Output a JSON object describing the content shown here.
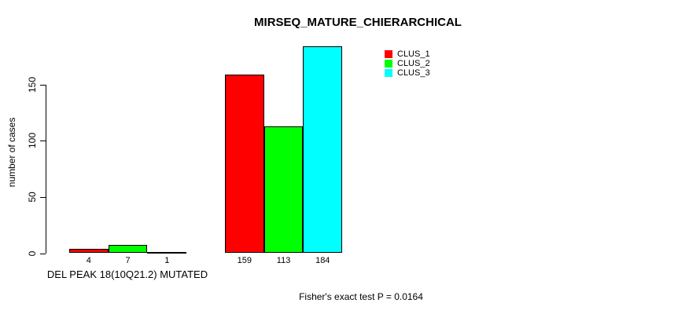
{
  "chart_data": {
    "type": "bar",
    "title": "MIRSEQ_MATURE_CHIERARCHICAL",
    "xlabel": "",
    "ylabel": "number of cases",
    "yticks": [
      0,
      50,
      100,
      150
    ],
    "yaxis_range": [
      0,
      150
    ],
    "grid": false,
    "legend_position": "top-right",
    "categories": [
      "DEL PEAK 18(10Q21.2) MUTATED",
      ""
    ],
    "series": [
      {
        "name": "CLUS_1",
        "color": "#FF0000",
        "values": [
          4,
          159
        ]
      },
      {
        "name": "CLUS_2",
        "color": "#00FF00",
        "values": [
          7,
          113
        ]
      },
      {
        "name": "CLUS_3",
        "color": "#00FFFF",
        "values": [
          1,
          184
        ]
      }
    ],
    "bar_value_labels": [
      [
        4,
        7,
        1
      ],
      [
        159,
        113,
        184
      ]
    ],
    "annotation": "Fisher's exact test P = 0.0164"
  },
  "colors": {
    "background": "#FFFFFF",
    "axis": "#000000",
    "text": "#000000"
  }
}
